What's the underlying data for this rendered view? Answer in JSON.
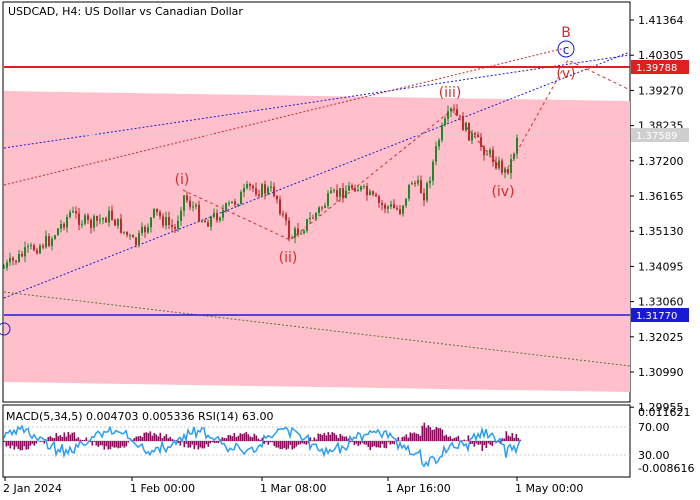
{
  "header": {
    "title": "USDCAD, H4:  US Dollar vs Canadian Dollar"
  },
  "main_chart": {
    "price_levels": [
      "1.41364",
      "1.40305",
      "1.39270",
      "1.38235",
      "1.37200",
      "1.36165",
      "1.35130",
      "1.34095",
      "1.33060",
      "1.32025",
      "1.30990",
      "1.29955"
    ],
    "current_price": "1.37589",
    "resistance_price": "1.39788",
    "support_price": "1.31770",
    "wave_labels": {
      "i": "(i)",
      "ii": "(ii)",
      "iii": "(iii)",
      "iv": "(iv)",
      "v": "(v)",
      "B": "B",
      "C": "c"
    }
  },
  "indicator": {
    "label": "MACD(5,34,5) 0.004703 0.005336 RSI(14) 63.00",
    "levels": [
      "0.011621",
      "70.00",
      "30.00",
      "-0.008616"
    ]
  },
  "time_axis": {
    "labels": [
      "2 Jan 2024",
      "1 Feb 00:00",
      "1 Mar 08:00",
      "1 Apr 16:00",
      "1 May 00:00"
    ]
  },
  "colors": {
    "channel": "#ffc0cb",
    "candle_up": "#1c8a2c",
    "candle_down": "#c0282c",
    "resistance": "#e02020",
    "support": "#1a1ad6",
    "wave": "#d22d2d",
    "macd_hist": "#8b0a5a",
    "rsi": "#2a9df4"
  }
}
